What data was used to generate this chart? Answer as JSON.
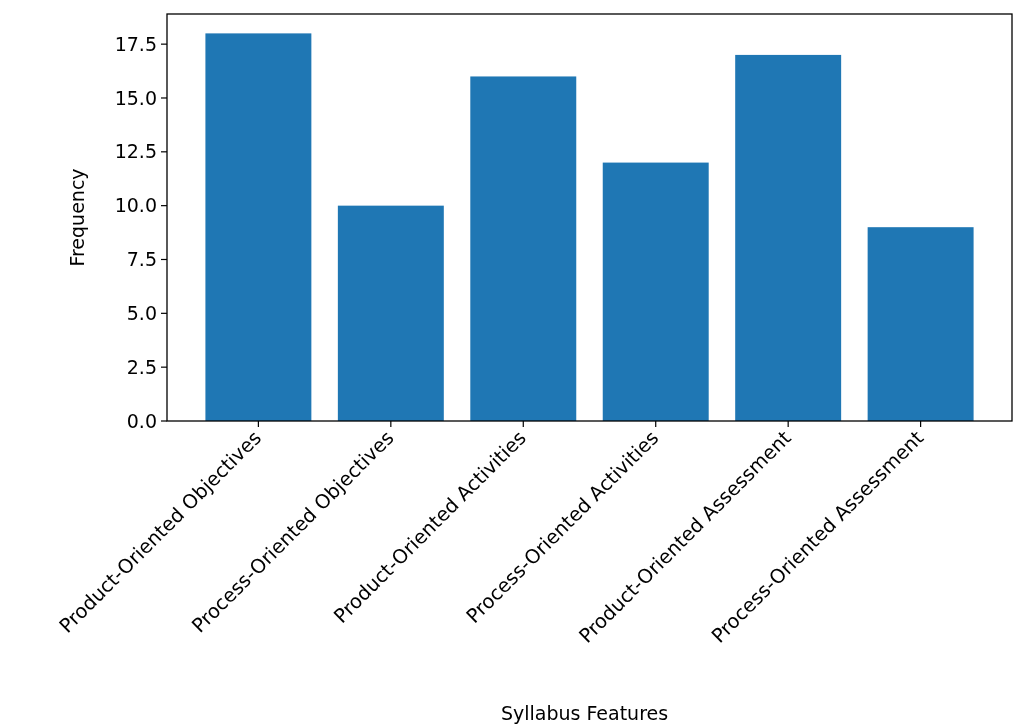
{
  "chart_data": {
    "type": "bar",
    "xlabel": "Syllabus Features",
    "ylabel": "Frequency",
    "categories": [
      "Product-Oriented Objectives",
      "Process-Oriented Objectives",
      "Product-Oriented Activities",
      "Process-Oriented Activities",
      "Product-Oriented Assessment",
      "Process-Oriented Assessment"
    ],
    "values": [
      18,
      10,
      16,
      12,
      17,
      9
    ],
    "color": "#1f77b4",
    "ylim": [
      0,
      18.9
    ],
    "yticks": [
      {
        "value": 0,
        "label": "0.0"
      },
      {
        "value": 2.5,
        "label": "2.5"
      },
      {
        "value": 5,
        "label": "5.0"
      },
      {
        "value": 7.5,
        "label": "7.5"
      },
      {
        "value": 10,
        "label": "10.0"
      },
      {
        "value": 12.5,
        "label": "12.5"
      },
      {
        "value": 15,
        "label": "15.0"
      },
      {
        "value": 17.5,
        "label": "17.5"
      }
    ],
    "grid": false
  }
}
